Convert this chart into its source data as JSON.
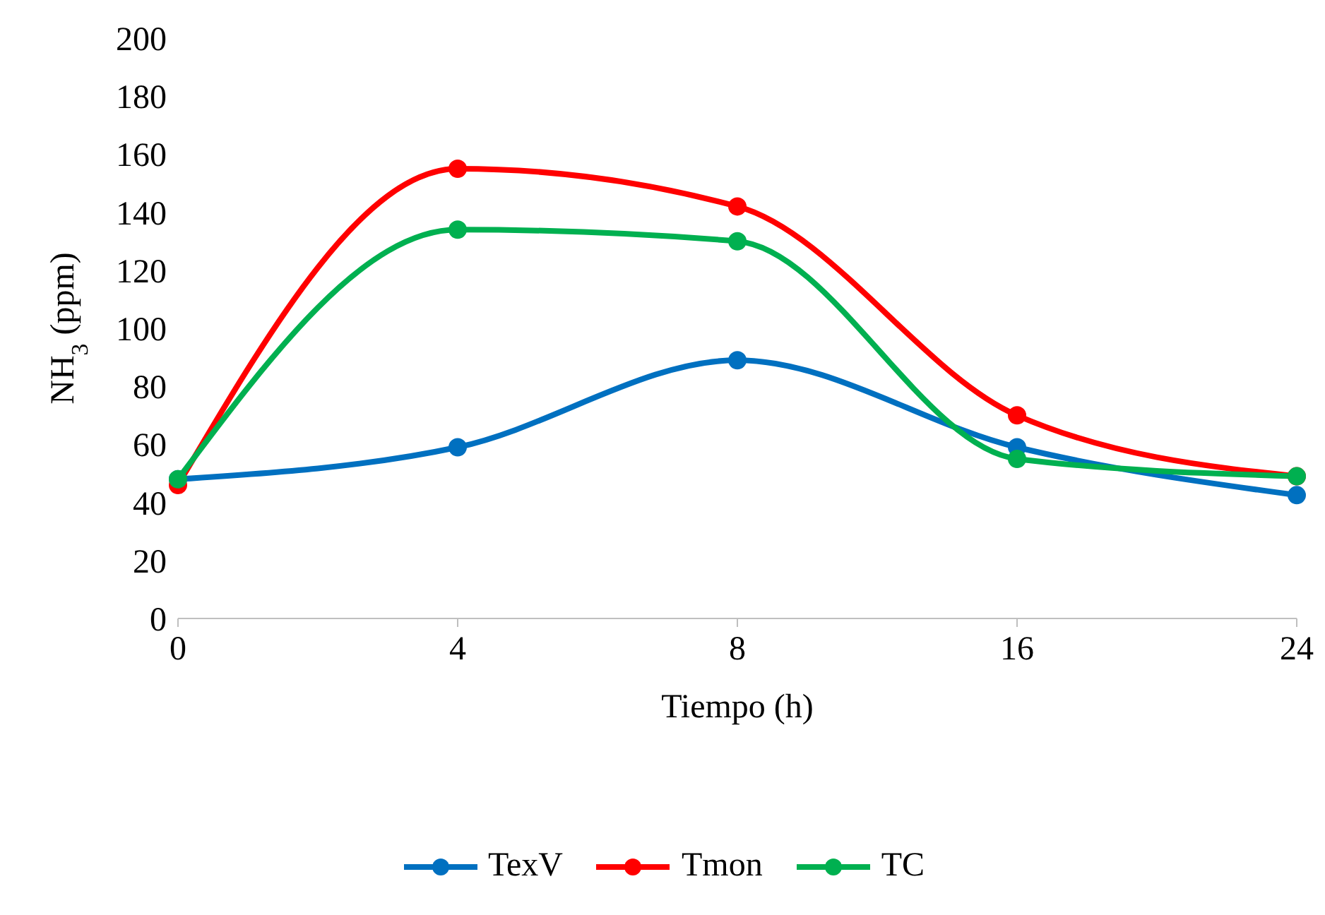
{
  "chart_data": {
    "type": "line",
    "xlabel": "Tiempo (h)",
    "ylabel": "NH$_{3}$ (ppm)",
    "categories": [
      "0",
      "4",
      "8",
      "16",
      "24"
    ],
    "series": [
      {
        "name": "TexV",
        "color": "#0070c0",
        "values": [
          48,
          59,
          89,
          59,
          42.5
        ]
      },
      {
        "name": "Tmon",
        "color": "#ff0000",
        "values": [
          46,
          155,
          142,
          70,
          49
        ]
      },
      {
        "name": "TC",
        "color": "#00b050",
        "values": [
          48,
          134,
          130,
          55,
          49
        ]
      }
    ],
    "ylim": [
      0,
      200
    ],
    "yticks": [
      0,
      20,
      40,
      60,
      80,
      100,
      120,
      140,
      160,
      180,
      200
    ],
    "grid": false,
    "legend": "bottom",
    "marker": "circle",
    "line_style": "solid"
  }
}
